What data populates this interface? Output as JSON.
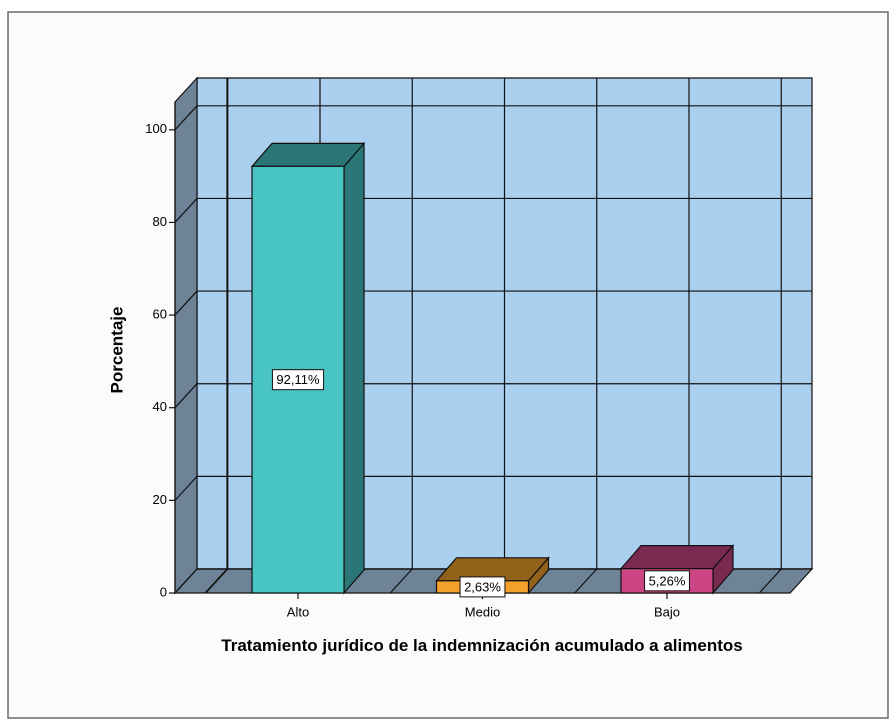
{
  "chart_data": {
    "type": "bar3d",
    "x_label": "Tratamiento jurídico de la indemnización acumulado a alimentos",
    "y_label": "Porcentaje",
    "categories": [
      "Alto",
      "Medio",
      "Bajo"
    ],
    "values": [
      92.11,
      2.63,
      5.26
    ],
    "value_labels": [
      "92,11%",
      "2,63%",
      "5,26%"
    ],
    "colors": [
      "#48c4c4",
      "#f4a12c",
      "#cc4585"
    ],
    "ylim": [
      0,
      106
    ],
    "yticks": [
      0,
      20,
      40,
      60,
      80,
      100
    ],
    "grid": true
  }
}
